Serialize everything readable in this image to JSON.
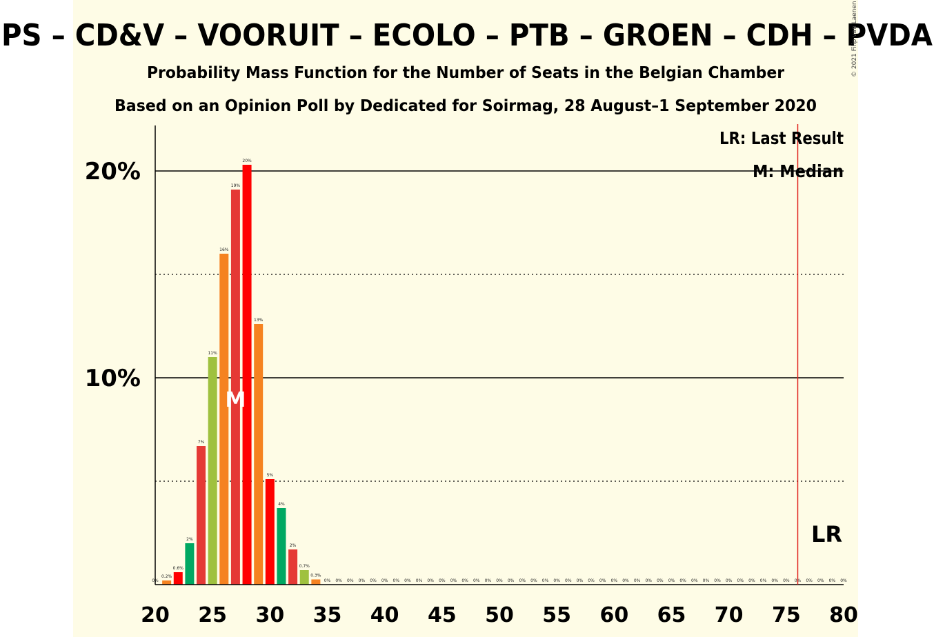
{
  "title": "PS – CD&V – VOORUIT – ECOLO – PTB – GROEN – CDH – PVDA",
  "subtitle1": "Probability Mass Function for the Number of Seats in the Belgian Chamber",
  "subtitle2": "Based on an Opinion Poll by Dedicated for Soirmag, 28 August–1 September 2020",
  "copyright": "© 2021 Filip van Laenen",
  "legend": {
    "lr": "LR: Last Result",
    "m": "M: Median"
  },
  "median_marker": "M",
  "lr_marker": "LR",
  "colors": {
    "background_band": "#fefce6",
    "lr_line": "#e0201b",
    "PS": "#ff0000",
    "CD&V": "#f58220",
    "VOORUIT": "#ff0000",
    "ECOLO": "#00a862",
    "PTB": "#e53935",
    "GROEN": "#9fc13f",
    "CDH": "#f58220",
    "PVDA": "#e53935"
  },
  "chart_data": {
    "type": "bar",
    "xlim": [
      20,
      80
    ],
    "ylim": [
      0,
      22
    ],
    "x_ticks": [
      "20",
      "25",
      "30",
      "35",
      "40",
      "45",
      "50",
      "55",
      "60",
      "65",
      "70",
      "75",
      "80"
    ],
    "y_ticks": [
      {
        "value": 10,
        "label": "10%"
      },
      {
        "value": 20,
        "label": "20%"
      }
    ],
    "dotted_gridlines": [
      5,
      15
    ],
    "median": 27,
    "last_result": 76,
    "bar_color_cycle": [
      "PS",
      "CD&V",
      "VOORUIT",
      "ECOLO",
      "PTB",
      "GROEN",
      "CDH",
      "PVDA"
    ],
    "bars": [
      {
        "x": 20,
        "value": 0,
        "label": "0%"
      },
      {
        "x": 21,
        "value": 0.2,
        "label": "0.2%"
      },
      {
        "x": 22,
        "value": 0.6,
        "label": "0.6%"
      },
      {
        "x": 23,
        "value": 2,
        "label": "2%"
      },
      {
        "x": 24,
        "value": 6.7,
        "label": "7%"
      },
      {
        "x": 25,
        "value": 11,
        "label": "11%"
      },
      {
        "x": 26,
        "value": 16,
        "label": "16%"
      },
      {
        "x": 27,
        "value": 19.1,
        "label": "19%"
      },
      {
        "x": 28,
        "value": 20.3,
        "label": "20%"
      },
      {
        "x": 29,
        "value": 12.6,
        "label": "13%"
      },
      {
        "x": 30,
        "value": 5.1,
        "label": "5%"
      },
      {
        "x": 31,
        "value": 3.7,
        "label": "4%"
      },
      {
        "x": 32,
        "value": 1.7,
        "label": "2%"
      },
      {
        "x": 33,
        "value": 0.7,
        "label": "0.7%"
      },
      {
        "x": 34,
        "value": 0.25,
        "label": "0.3%"
      },
      {
        "x": 35,
        "value": 0,
        "label": "0%"
      },
      {
        "x": 36,
        "value": 0,
        "label": "0%"
      },
      {
        "x": 37,
        "value": 0,
        "label": "0%"
      },
      {
        "x": 38,
        "value": 0,
        "label": "0%"
      },
      {
        "x": 39,
        "value": 0,
        "label": "0%"
      },
      {
        "x": 40,
        "value": 0,
        "label": "0%"
      },
      {
        "x": 41,
        "value": 0,
        "label": "0%"
      },
      {
        "x": 42,
        "value": 0,
        "label": "0%"
      },
      {
        "x": 43,
        "value": 0,
        "label": "0%"
      },
      {
        "x": 44,
        "value": 0,
        "label": "0%"
      },
      {
        "x": 45,
        "value": 0,
        "label": "0%"
      },
      {
        "x": 46,
        "value": 0,
        "label": "0%"
      },
      {
        "x": 47,
        "value": 0,
        "label": "0%"
      },
      {
        "x": 48,
        "value": 0,
        "label": "0%"
      },
      {
        "x": 49,
        "value": 0,
        "label": "0%"
      },
      {
        "x": 50,
        "value": 0,
        "label": "0%"
      },
      {
        "x": 51,
        "value": 0,
        "label": "0%"
      },
      {
        "x": 52,
        "value": 0,
        "label": "0%"
      },
      {
        "x": 53,
        "value": 0,
        "label": "0%"
      },
      {
        "x": 54,
        "value": 0,
        "label": "0%"
      },
      {
        "x": 55,
        "value": 0,
        "label": "0%"
      },
      {
        "x": 56,
        "value": 0,
        "label": "0%"
      },
      {
        "x": 57,
        "value": 0,
        "label": "0%"
      },
      {
        "x": 58,
        "value": 0,
        "label": "0%"
      },
      {
        "x": 59,
        "value": 0,
        "label": "0%"
      },
      {
        "x": 60,
        "value": 0,
        "label": "0%"
      },
      {
        "x": 61,
        "value": 0,
        "label": "0%"
      },
      {
        "x": 62,
        "value": 0,
        "label": "0%"
      },
      {
        "x": 63,
        "value": 0,
        "label": "0%"
      },
      {
        "x": 64,
        "value": 0,
        "label": "0%"
      },
      {
        "x": 65,
        "value": 0,
        "label": "0%"
      },
      {
        "x": 66,
        "value": 0,
        "label": "0%"
      },
      {
        "x": 67,
        "value": 0,
        "label": "0%"
      },
      {
        "x": 68,
        "value": 0,
        "label": "0%"
      },
      {
        "x": 69,
        "value": 0,
        "label": "0%"
      },
      {
        "x": 70,
        "value": 0,
        "label": "0%"
      },
      {
        "x": 71,
        "value": 0,
        "label": "0%"
      },
      {
        "x": 72,
        "value": 0,
        "label": "0%"
      },
      {
        "x": 73,
        "value": 0,
        "label": "0%"
      },
      {
        "x": 74,
        "value": 0,
        "label": "0%"
      },
      {
        "x": 75,
        "value": 0,
        "label": "0%"
      },
      {
        "x": 76,
        "value": 0,
        "label": "0%"
      },
      {
        "x": 77,
        "value": 0,
        "label": "0%"
      },
      {
        "x": 78,
        "value": 0,
        "label": "0%"
      },
      {
        "x": 79,
        "value": 0,
        "label": "0%"
      },
      {
        "x": 80,
        "value": 0,
        "label": "0%"
      }
    ]
  }
}
